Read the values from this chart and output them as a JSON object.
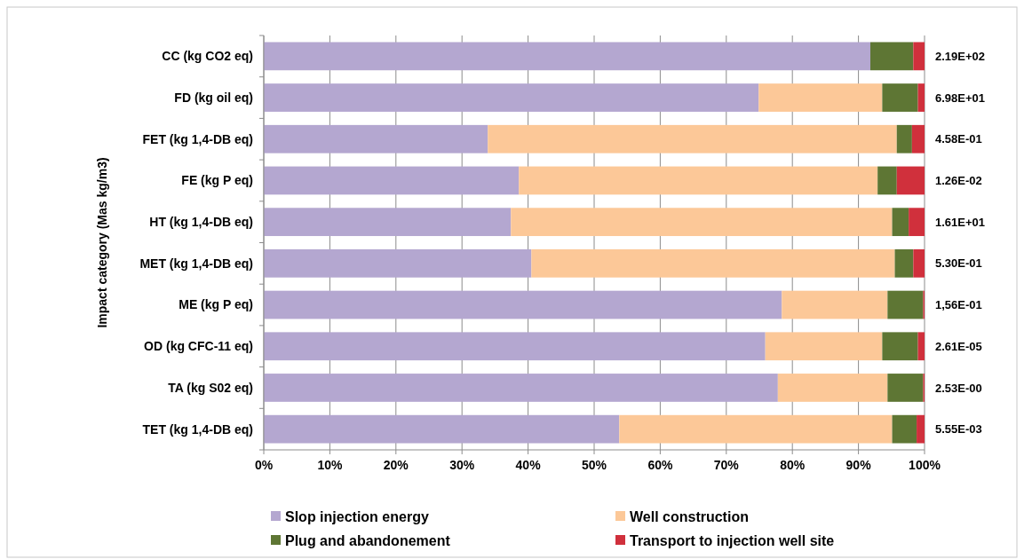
{
  "chart_data": {
    "type": "bar",
    "orientation": "horizontal",
    "stacked": true,
    "ylabel": "Impact category (Mas kg/m3)",
    "categories": [
      "CC (kg CO2 eq)",
      "FD (kg oil eq)",
      "FET (kg 1,4-DB eq)",
      "FE (kg P eq)",
      "HT (kg 1,4-DB eq)",
      "MET (kg 1,4-DB eq)",
      "ME (kg P eq)",
      "OD (kg CFC-11 eq)",
      "TA (kg S02 eq)",
      "TET (kg 1,4-DB eq)"
    ],
    "series": [
      {
        "name": "Slop injection energy",
        "color": "#b4a7d0",
        "values": [
          91.8,
          74.9,
          33.9,
          38.6,
          37.4,
          40.5,
          78.4,
          75.9,
          77.8,
          53.8
        ]
      },
      {
        "name": "Well construction",
        "color": "#fcc898",
        "values": [
          0,
          18.7,
          61.9,
          54.3,
          57.7,
          55.0,
          16.0,
          17.7,
          16.6,
          41.3
        ]
      },
      {
        "name": "Plug and abandonement",
        "color": "#5e7634",
        "values": [
          6.5,
          5.4,
          2.3,
          2.9,
          2.5,
          2.8,
          5.4,
          5.4,
          5.4,
          3.7
        ]
      },
      {
        "name": "Transport to injection well site",
        "color": "#d0303c",
        "values": [
          1.7,
          1.0,
          1.9,
          4.2,
          2.4,
          1.7,
          0.2,
          1.0,
          0.2,
          1.2
        ]
      }
    ],
    "annotations": [
      "2.19E+02",
      "6.98E+01",
      "4.58E-01",
      "1.26E-02",
      "1.61E+01",
      "5.30E-01",
      "1,56E-01",
      "2.61E-05",
      "2.53E-00",
      "5.55E-03"
    ],
    "xlim": [
      0,
      100
    ],
    "xticks": [
      {
        "value": 0,
        "label": "0%"
      },
      {
        "value": 10,
        "label": "10%"
      },
      {
        "value": 20,
        "label": "20%"
      },
      {
        "value": 30,
        "label": "30%"
      },
      {
        "value": 40,
        "label": "40%"
      },
      {
        "value": 50,
        "label": "50%"
      },
      {
        "value": 60,
        "label": "60%"
      },
      {
        "value": 70,
        "label": "70%"
      },
      {
        "value": 80,
        "label": "80%"
      },
      {
        "value": 90,
        "label": "90%"
      },
      {
        "value": 100,
        "label": "100%"
      }
    ],
    "grid": "x",
    "legend": "bottom"
  }
}
